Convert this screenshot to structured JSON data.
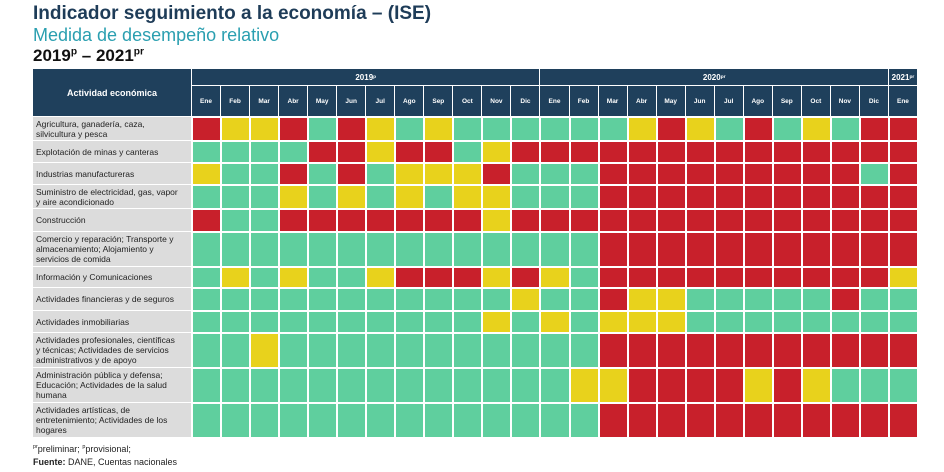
{
  "header": {
    "title": "Indicador seguimiento a la economía – (ISE)",
    "subtitle": "Medida de desempeño relativo",
    "period": {
      "start": "2019",
      "start_sup": "p",
      "dash": " – ",
      "end": "2021",
      "end_sup": "pr"
    }
  },
  "table": {
    "corner": "Actividad económica",
    "years": [
      {
        "label": "2019",
        "sup": "p",
        "months": [
          "Ene",
          "Feb",
          "Mar",
          "Abr",
          "May",
          "Jun",
          "Jul",
          "Ago",
          "Sep",
          "Oct",
          "Nov",
          "Dic"
        ]
      },
      {
        "label": "2020",
        "sup": "pr",
        "months": [
          "Ene",
          "Feb",
          "Mar",
          "Abr",
          "May",
          "Jun",
          "Jul",
          "Ago",
          "Sep",
          "Oct",
          "Nov",
          "Dic"
        ]
      },
      {
        "label": "2021",
        "sup": "pr",
        "months": [
          "Ene"
        ]
      }
    ],
    "rows": [
      {
        "label": [
          "Agricultura, ganadería, caza,",
          "silvicultura y pesca"
        ],
        "cells": [
          "#c8202b",
          "#e8d21c",
          "#e8d21c",
          "#c8202b",
          "#5fcf9e",
          "#c8202b",
          "#e8d21c",
          "#5fcf9e",
          "#e8d21c",
          "#5fcf9e",
          "#5fcf9e",
          "#5fcf9e",
          "#5fcf9e",
          "#5fcf9e",
          "#5fcf9e",
          "#e8d21c",
          "#c8202b",
          "#e8d21c",
          "#5fcf9e",
          "#c8202b",
          "#5fcf9e",
          "#e8d21c",
          "#5fcf9e",
          "#c8202b",
          "#c8202b"
        ]
      },
      {
        "label": [
          "Explotación de minas y canteras"
        ],
        "cells": [
          "#5fcf9e",
          "#5fcf9e",
          "#5fcf9e",
          "#5fcf9e",
          "#c8202b",
          "#c8202b",
          "#e8d21c",
          "#c8202b",
          "#c8202b",
          "#5fcf9e",
          "#e8d21c",
          "#c8202b",
          "#c8202b",
          "#c8202b",
          "#c8202b",
          "#c8202b",
          "#c8202b",
          "#c8202b",
          "#c8202b",
          "#c8202b",
          "#c8202b",
          "#c8202b",
          "#c8202b",
          "#c8202b",
          "#c8202b"
        ]
      },
      {
        "label": [
          "Industrias manufactureras"
        ],
        "cells": [
          "#e8d21c",
          "#5fcf9e",
          "#5fcf9e",
          "#c8202b",
          "#5fcf9e",
          "#c8202b",
          "#5fcf9e",
          "#e8d21c",
          "#e8d21c",
          "#e8d21c",
          "#c8202b",
          "#5fcf9e",
          "#5fcf9e",
          "#5fcf9e",
          "#c8202b",
          "#c8202b",
          "#c8202b",
          "#c8202b",
          "#c8202b",
          "#c8202b",
          "#c8202b",
          "#c8202b",
          "#c8202b",
          "#5fcf9e",
          "#c8202b"
        ]
      },
      {
        "label": [
          "Suministro de electricidad, gas, vapor",
          "y aire acondicionado"
        ],
        "cells": [
          "#5fcf9e",
          "#5fcf9e",
          "#5fcf9e",
          "#e8d21c",
          "#5fcf9e",
          "#e8d21c",
          "#5fcf9e",
          "#e8d21c",
          "#5fcf9e",
          "#e8d21c",
          "#e8d21c",
          "#5fcf9e",
          "#5fcf9e",
          "#5fcf9e",
          "#c8202b",
          "#c8202b",
          "#c8202b",
          "#c8202b",
          "#c8202b",
          "#c8202b",
          "#c8202b",
          "#c8202b",
          "#c8202b",
          "#c8202b",
          "#c8202b"
        ]
      },
      {
        "label": [
          "Construcción"
        ],
        "cells": [
          "#c8202b",
          "#5fcf9e",
          "#5fcf9e",
          "#c8202b",
          "#c8202b",
          "#c8202b",
          "#c8202b",
          "#c8202b",
          "#c8202b",
          "#c8202b",
          "#e8d21c",
          "#c8202b",
          "#c8202b",
          "#c8202b",
          "#c8202b",
          "#c8202b",
          "#c8202b",
          "#c8202b",
          "#c8202b",
          "#c8202b",
          "#c8202b",
          "#c8202b",
          "#c8202b",
          "#c8202b",
          "#c8202b"
        ]
      },
      {
        "label": [
          "Comercio y reparación; Transporte y",
          "almacenamiento; Alojamiento y",
          "servicios de comida"
        ],
        "cells": [
          "#5fcf9e",
          "#5fcf9e",
          "#5fcf9e",
          "#5fcf9e",
          "#5fcf9e",
          "#5fcf9e",
          "#5fcf9e",
          "#5fcf9e",
          "#5fcf9e",
          "#5fcf9e",
          "#5fcf9e",
          "#5fcf9e",
          "#5fcf9e",
          "#5fcf9e",
          "#c8202b",
          "#c8202b",
          "#c8202b",
          "#c8202b",
          "#c8202b",
          "#c8202b",
          "#c8202b",
          "#c8202b",
          "#c8202b",
          "#c8202b",
          "#c8202b"
        ]
      },
      {
        "label": [
          "Información y Comunicaciones"
        ],
        "cells": [
          "#5fcf9e",
          "#e8d21c",
          "#5fcf9e",
          "#e8d21c",
          "#5fcf9e",
          "#5fcf9e",
          "#e8d21c",
          "#c8202b",
          "#c8202b",
          "#c8202b",
          "#e8d21c",
          "#c8202b",
          "#e8d21c",
          "#5fcf9e",
          "#c8202b",
          "#c8202b",
          "#c8202b",
          "#c8202b",
          "#c8202b",
          "#c8202b",
          "#c8202b",
          "#c8202b",
          "#c8202b",
          "#c8202b",
          "#e8d21c"
        ]
      },
      {
        "label": [
          "Actividades financieras y de seguros"
        ],
        "cells": [
          "#5fcf9e",
          "#5fcf9e",
          "#5fcf9e",
          "#5fcf9e",
          "#5fcf9e",
          "#5fcf9e",
          "#5fcf9e",
          "#5fcf9e",
          "#5fcf9e",
          "#5fcf9e",
          "#5fcf9e",
          "#e8d21c",
          "#5fcf9e",
          "#5fcf9e",
          "#c8202b",
          "#e8d21c",
          "#e8d21c",
          "#5fcf9e",
          "#5fcf9e",
          "#5fcf9e",
          "#5fcf9e",
          "#5fcf9e",
          "#c8202b",
          "#5fcf9e",
          "#5fcf9e"
        ]
      },
      {
        "label": [
          "Actividades inmobiliarias"
        ],
        "cells": [
          "#5fcf9e",
          "#5fcf9e",
          "#5fcf9e",
          "#5fcf9e",
          "#5fcf9e",
          "#5fcf9e",
          "#5fcf9e",
          "#5fcf9e",
          "#5fcf9e",
          "#5fcf9e",
          "#e8d21c",
          "#5fcf9e",
          "#e8d21c",
          "#5fcf9e",
          "#e8d21c",
          "#e8d21c",
          "#e8d21c",
          "#5fcf9e",
          "#5fcf9e",
          "#5fcf9e",
          "#5fcf9e",
          "#5fcf9e",
          "#5fcf9e",
          "#5fcf9e",
          "#5fcf9e"
        ]
      },
      {
        "label": [
          "Actividades profesionales, científicas",
          "y técnicas; Actividades de servicios",
          "administrativos y de apoyo"
        ],
        "cells": [
          "#5fcf9e",
          "#5fcf9e",
          "#e8d21c",
          "#5fcf9e",
          "#5fcf9e",
          "#5fcf9e",
          "#5fcf9e",
          "#5fcf9e",
          "#5fcf9e",
          "#5fcf9e",
          "#5fcf9e",
          "#5fcf9e",
          "#5fcf9e",
          "#5fcf9e",
          "#c8202b",
          "#c8202b",
          "#c8202b",
          "#c8202b",
          "#c8202b",
          "#c8202b",
          "#c8202b",
          "#c8202b",
          "#c8202b",
          "#c8202b",
          "#c8202b"
        ]
      },
      {
        "label": [
          "Administración pública y defensa;",
          "Educación; Actividades de la salud",
          "humana"
        ],
        "cells": [
          "#5fcf9e",
          "#5fcf9e",
          "#5fcf9e",
          "#5fcf9e",
          "#5fcf9e",
          "#5fcf9e",
          "#5fcf9e",
          "#5fcf9e",
          "#5fcf9e",
          "#5fcf9e",
          "#5fcf9e",
          "#5fcf9e",
          "#5fcf9e",
          "#e8d21c",
          "#e8d21c",
          "#c8202b",
          "#c8202b",
          "#c8202b",
          "#c8202b",
          "#e8d21c",
          "#c8202b",
          "#e8d21c",
          "#5fcf9e",
          "#5fcf9e",
          "#5fcf9e"
        ]
      },
      {
        "label": [
          "Actividades artísticas, de",
          "entretenimiento; Actividades de los",
          "hogares"
        ],
        "cells": [
          "#5fcf9e",
          "#5fcf9e",
          "#5fcf9e",
          "#5fcf9e",
          "#5fcf9e",
          "#5fcf9e",
          "#5fcf9e",
          "#5fcf9e",
          "#5fcf9e",
          "#5fcf9e",
          "#5fcf9e",
          "#5fcf9e",
          "#5fcf9e",
          "#5fcf9e",
          "#c8202b",
          "#c8202b",
          "#c8202b",
          "#c8202b",
          "#c8202b",
          "#c8202b",
          "#c8202b",
          "#c8202b",
          "#c8202b",
          "#c8202b",
          "#c8202b"
        ]
      }
    ]
  },
  "footnote": {
    "sup1": "pr",
    "text1": "preliminar; ",
    "sup2": "p",
    "text2": "provisional;"
  },
  "source": {
    "label": "Fuente:",
    "text": " DANE, Cuentas nacionales"
  }
}
